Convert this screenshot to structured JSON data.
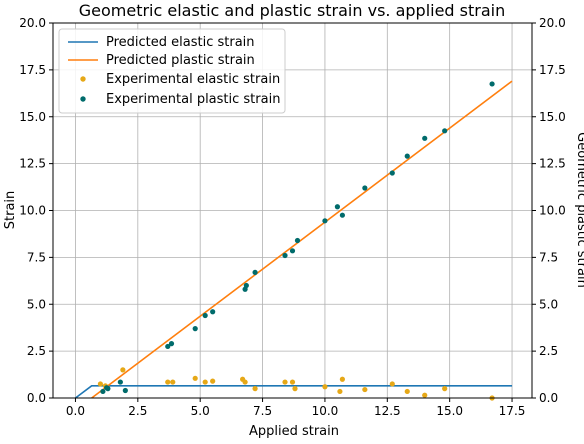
{
  "chart_data": {
    "type": "scatter",
    "title": "Geometric elastic and plastic strain vs. applied strain",
    "xlabel": "Applied strain",
    "ylabel": "Strain",
    "ylabel_right": "Geometric plastic strain",
    "xlim": [
      -0.9,
      18.3
    ],
    "ylim": [
      0,
      20
    ],
    "ylim_right": [
      0,
      20
    ],
    "xticks": [
      "0.0",
      "2.5",
      "5.0",
      "7.5",
      "10.0",
      "12.5",
      "15.0",
      "17.5"
    ],
    "yticks": [
      "0.0",
      "2.5",
      "5.0",
      "7.5",
      "10.0",
      "12.5",
      "15.0",
      "17.5",
      "20.0"
    ],
    "grid": true,
    "legend_position": "top-left",
    "lines": [
      {
        "name": "Predicted elastic strain",
        "color": "#1f77b4",
        "x": [
          0.0,
          0.65,
          17.5
        ],
        "y": [
          0.0,
          0.65,
          0.65
        ]
      },
      {
        "name": "Predicted plastic strain",
        "color": "#ff7f0e",
        "x": [
          0.65,
          17.5
        ],
        "y": [
          0.0,
          16.9
        ]
      }
    ],
    "scatter": [
      {
        "name": "Experimental elastic strain",
        "color": "#e6a817",
        "x": [
          1.0,
          1.2,
          1.9,
          3.7,
          3.9,
          4.8,
          5.2,
          5.5,
          6.7,
          6.8,
          7.2,
          8.4,
          8.7,
          8.8,
          10.0,
          10.6,
          10.7,
          11.6,
          12.7,
          13.3,
          14.0,
          14.8,
          16.7
        ],
        "y": [
          0.75,
          0.65,
          1.5,
          0.85,
          0.85,
          1.05,
          0.85,
          0.9,
          1.0,
          0.85,
          0.5,
          0.85,
          0.85,
          0.5,
          0.6,
          0.35,
          1.0,
          0.45,
          0.75,
          0.35,
          0.15,
          0.5,
          0.0
        ]
      },
      {
        "name": "Experimental plastic strain",
        "color": "#006b6b",
        "x": [
          1.1,
          1.25,
          1.3,
          1.8,
          2.0,
          3.7,
          3.85,
          4.8,
          5.2,
          5.5,
          6.8,
          6.85,
          7.2,
          8.4,
          8.7,
          8.9,
          10.0,
          10.5,
          10.7,
          11.6,
          12.7,
          13.3,
          14.0,
          14.8,
          16.7
        ],
        "y": [
          0.35,
          0.55,
          0.5,
          0.85,
          0.4,
          2.75,
          2.9,
          3.7,
          4.4,
          4.6,
          5.8,
          6.0,
          6.7,
          7.6,
          7.85,
          8.4,
          9.45,
          10.2,
          9.75,
          11.2,
          12.0,
          12.9,
          13.85,
          14.25,
          16.75
        ]
      }
    ]
  }
}
